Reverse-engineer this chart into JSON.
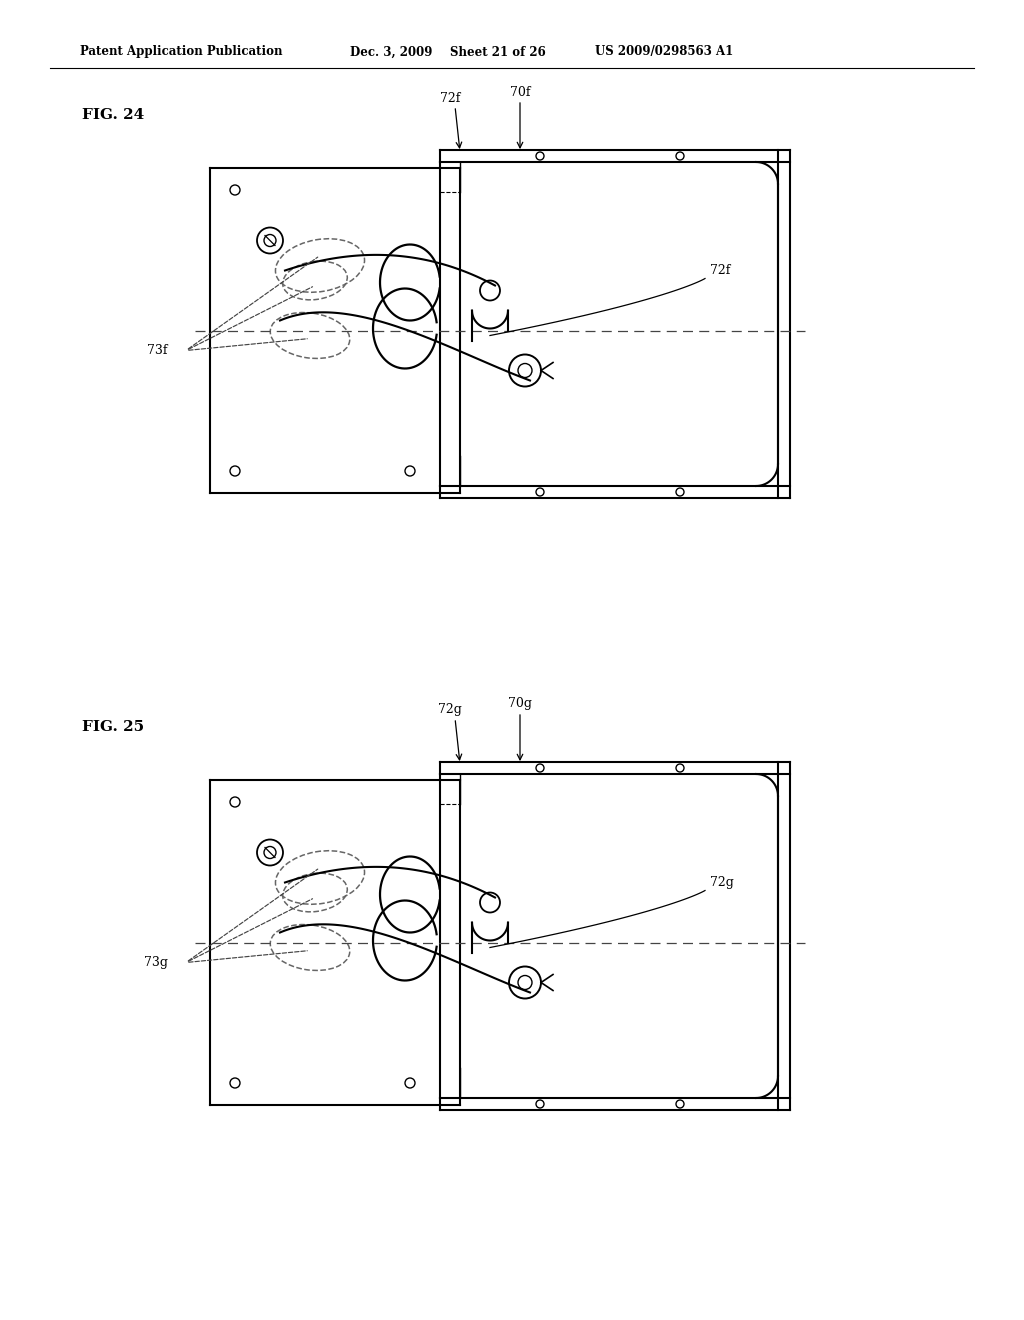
{
  "bg_color": "#ffffff",
  "page_width": 10.24,
  "page_height": 13.2,
  "header_text": "Patent Application Publication",
  "header_date": "Dec. 3, 2009",
  "header_sheet": "Sheet 21 of 26",
  "header_patent": "US 2009/0298563 A1",
  "fig24_label": "FIG. 24",
  "fig25_label": "FIG. 25",
  "line_color": "#000000",
  "label_fontsize": 9,
  "header_fontsize": 8.5,
  "fig_label_fontsize": 11
}
